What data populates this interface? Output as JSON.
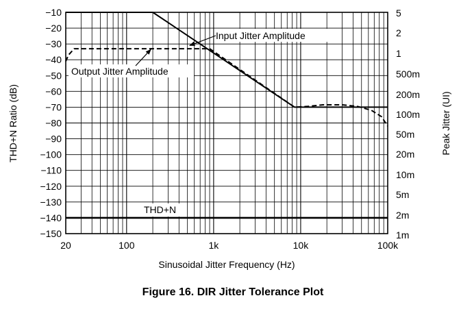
{
  "chart_data": {
    "type": "line",
    "caption": "Figure 16. DIR Jitter Tolerance Plot",
    "xlabel": "Sinusoidal Jitter Frequency (Hz)",
    "ylabel_left": "THD+N Ratio (dB)",
    "ylabel_right": "Peak Jitter (UI)",
    "x_scale": "log",
    "xlim": [
      20,
      100000
    ],
    "ylim_left": [
      -150,
      -10
    ],
    "ylim_right": [
      1,
      5
    ],
    "grid": true,
    "x_ticks": [
      {
        "value": 20,
        "label": "20"
      },
      {
        "value": 100,
        "label": "100"
      },
      {
        "value": 1000,
        "label": "1k"
      },
      {
        "value": 10000,
        "label": "10k"
      },
      {
        "value": 100000,
        "label": "100k"
      }
    ],
    "y_left_ticks": [
      {
        "value": -10,
        "label": "−10"
      },
      {
        "value": -20,
        "label": "−20"
      },
      {
        "value": -30,
        "label": "−30"
      },
      {
        "value": -40,
        "label": "−40"
      },
      {
        "value": -50,
        "label": "−50"
      },
      {
        "value": -60,
        "label": "−60"
      },
      {
        "value": -70,
        "label": "−70"
      },
      {
        "value": -80,
        "label": "−80"
      },
      {
        "value": -90,
        "label": "−90"
      },
      {
        "value": -100,
        "label": "−100"
      },
      {
        "value": -110,
        "label": "−110"
      },
      {
        "value": -120,
        "label": "−120"
      },
      {
        "value": -130,
        "label": "−130"
      },
      {
        "value": -140,
        "label": "−140"
      },
      {
        "value": -150,
        "label": "−150"
      }
    ],
    "y_right_ticks": [
      {
        "at_left_db": -10,
        "label": "5"
      },
      {
        "at_left_db": -20,
        "label": "2"
      },
      {
        "at_left_db": -30,
        "label": "1"
      },
      {
        "at_left_db": -40,
        "label": "500m"
      },
      {
        "at_left_db": -50,
        "label": "200m"
      },
      {
        "at_left_db": -60,
        "label": "100m"
      },
      {
        "at_left_db": -70,
        "label": "50m"
      },
      {
        "at_left_db": -80,
        "label": "20m"
      },
      {
        "at_left_db": -90,
        "label": "10m"
      },
      {
        "at_left_db": -100,
        "label": "5m"
      },
      {
        "at_left_db": -110,
        "label": "2m"
      },
      {
        "at_left_db": -120,
        "label": "1m"
      }
    ],
    "series": [
      {
        "name": "Input Jitter Amplitude",
        "style": "solid",
        "points": [
          [
            20,
            -10
          ],
          [
            200,
            -10
          ],
          [
            8500,
            -70
          ],
          [
            100000,
            -70
          ]
        ]
      },
      {
        "name": "Output Jitter Amplitude",
        "style": "dashed",
        "points": [
          [
            20,
            -41
          ],
          [
            21.5,
            -37
          ],
          [
            25,
            -33
          ],
          [
            900,
            -33
          ],
          [
            8500,
            -70
          ],
          [
            12000,
            -69.5
          ],
          [
            18000,
            -68.5
          ],
          [
            30000,
            -68.5
          ],
          [
            45000,
            -69.5
          ],
          [
            65000,
            -72
          ],
          [
            85000,
            -76
          ],
          [
            100000,
            -82
          ]
        ]
      },
      {
        "name": "THD+N",
        "style": "solid-thick",
        "points": [
          [
            20,
            -140
          ],
          [
            100000,
            -140
          ]
        ]
      }
    ],
    "annotations": [
      {
        "text": "Input Jitter Amplitude",
        "target_series": 0
      },
      {
        "text": "Output Jitter Amplitude",
        "target_series": 1
      },
      {
        "text": "THD+N",
        "target_series": 2
      }
    ]
  }
}
